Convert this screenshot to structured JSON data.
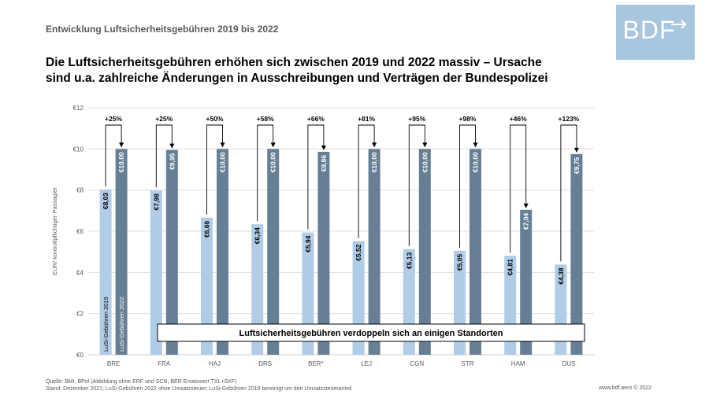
{
  "header": {
    "topline": "Entwicklung Luftsicherheitsgebühren 2019 bis 2022",
    "headline_line1": "Die Luftsicherheitsgebühren erhöhen sich zwischen 2019 und 2022 massiv – Ursache",
    "headline_line2": "sind u.a. zahlreiche Änderungen in Ausschreibungen und Verträgen der Bundespolizei"
  },
  "logo": {
    "text": "BDF",
    "icon": "arrow-icon"
  },
  "colors": {
    "bar_2019": "#b0cce6",
    "bar_2022": "#667f95",
    "axis_text": "#595959",
    "grid": "#d9d9d9"
  },
  "chart_data": {
    "type": "bar",
    "categories": [
      "BRE",
      "FRA",
      "HAJ",
      "DRS",
      "BER*",
      "LEJ",
      "CGN",
      "STR",
      "HAM",
      "DUS"
    ],
    "series": [
      {
        "name": "LuSi-Gebühren 2019",
        "values": [
          8.03,
          7.98,
          6.66,
          6.34,
          5.94,
          5.52,
          5.13,
          5.05,
          4.81,
          4.38
        ],
        "labels": [
          "€8,03",
          "€7,98",
          "€6,66",
          "€6,34",
          "€5,94",
          "€5,52",
          "€5,13",
          "€5,05",
          "€4,81",
          "€4,38"
        ]
      },
      {
        "name": "LuSi-Gebühren 2022",
        "values": [
          10.0,
          9.95,
          10.0,
          10.0,
          9.86,
          10.0,
          10.0,
          10.0,
          7.04,
          9.75
        ],
        "labels": [
          "€10,00",
          "€9,95",
          "€10,00",
          "€10,00",
          "€9,86",
          "€10,00",
          "€10,00",
          "€10,00",
          "€7,04",
          "€9,75"
        ]
      }
    ],
    "changes": [
      "+25%",
      "+25%",
      "+50%",
      "+58%",
      "+66%",
      "+81%",
      "+95%",
      "+98%",
      "+46%",
      "+123%"
    ],
    "ylabel": "EUR/ kontrollpflichtiger Passagier",
    "ylim": [
      0,
      12
    ],
    "yticks": [
      0,
      2,
      4,
      6,
      8,
      10,
      12
    ],
    "ytick_labels": [
      "€0",
      "€2",
      "€4",
      "€6",
      "€8",
      "€10",
      "€12"
    ],
    "grid": true,
    "legend_placement": "inside-first-bars",
    "annotation": "Luftsicherheitsgebühren verdoppeln sich an einigen Standorten"
  },
  "footer": {
    "source_line1": "Quelle: BMI, BPol (Abbildung ohne ERF und SCN; BER Ersatzwert TXL+SXF)",
    "source_line2": "Stand: Dezember 2021; LuSi-Gebühren 2022 ohne Umsatzsteuer; LuSi-Gebühren 2019 bereinigt um den Umsatzsteueranteil",
    "website": "www.bdf.aero © 2022"
  }
}
